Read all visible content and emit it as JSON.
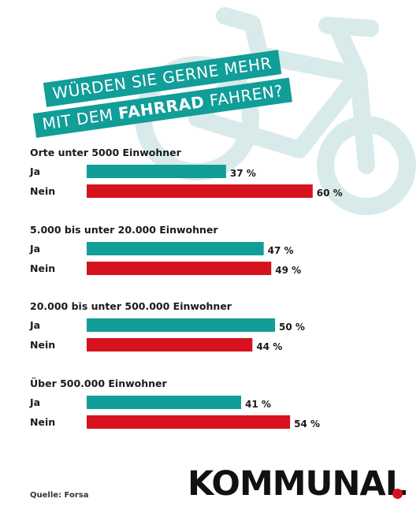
{
  "headline": {
    "line1": "WÜRDEN SIE GERNE MEHR",
    "line2_pre": "MIT DEM ",
    "line2_bold": "FAHRRAD",
    "line2_post": " FAHREN?"
  },
  "colors": {
    "ja": "#119d98",
    "nein": "#d7121f",
    "bike": "#d8ebea"
  },
  "icons": {
    "background": "bicycle-icon"
  },
  "chart_data": {
    "type": "bar",
    "orientation": "horizontal",
    "value_unit": "%",
    "xlim": [
      0,
      100
    ],
    "groups": [
      {
        "title": "Orte unter 5000 Einwohner",
        "rows": [
          {
            "label": "Ja",
            "value": 37,
            "text": "37 %"
          },
          {
            "label": "Nein",
            "value": 60,
            "text": "60 %"
          }
        ]
      },
      {
        "title": "5.000 bis unter 20.000 Einwohner",
        "rows": [
          {
            "label": "Ja",
            "value": 47,
            "text": "47 %"
          },
          {
            "label": "Nein",
            "value": 49,
            "text": "49 %"
          }
        ]
      },
      {
        "title": "20.000 bis unter 500.000 Einwohner",
        "rows": [
          {
            "label": "Ja",
            "value": 50,
            "text": "50 %"
          },
          {
            "label": "Nein",
            "value": 44,
            "text": "44 %"
          }
        ]
      },
      {
        "title": "Über 500.000 Einwohner",
        "rows": [
          {
            "label": "Ja",
            "value": 41,
            "text": "41 %"
          },
          {
            "label": "Nein",
            "value": 54,
            "text": "54 %"
          }
        ]
      }
    ]
  },
  "footer": {
    "source": "Quelle: Forsa",
    "logo": "KOMMUNAL"
  }
}
